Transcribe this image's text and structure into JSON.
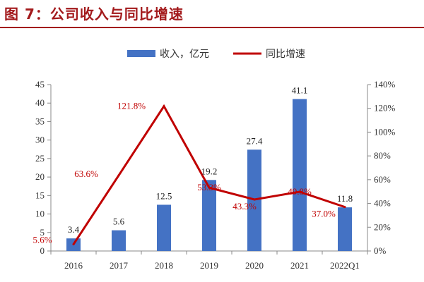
{
  "header": {
    "title": "图 7：公司收入与同比增速"
  },
  "chart_data": {
    "type": "bar",
    "categories": [
      "2016",
      "2017",
      "2018",
      "2019",
      "2020",
      "2021",
      "2022Q1"
    ],
    "series": [
      {
        "name": "收入，亿元",
        "type": "bar",
        "axis": "left",
        "color": "#4472c4",
        "values": [
          3.4,
          5.6,
          12.5,
          19.2,
          27.4,
          41.1,
          11.8
        ],
        "labels": [
          "3.4",
          "5.6",
          "12.5",
          "19.2",
          "27.4",
          "41.1",
          "11.8"
        ]
      },
      {
        "name": "同比增速",
        "type": "line",
        "axis": "right",
        "color": "#c00000",
        "values": [
          5.6,
          63.6,
          121.8,
          53.3,
          43.3,
          49.8,
          37.0
        ],
        "labels": [
          "5.6%",
          "63.6%",
          "121.8%",
          "53.3%",
          "43.3%",
          "49.8%",
          "37.0%"
        ]
      }
    ],
    "y_left": {
      "min": 0,
      "max": 45,
      "step": 5,
      "ticks": [
        "0",
        "5",
        "10",
        "15",
        "20",
        "25",
        "30",
        "35",
        "40",
        "45"
      ]
    },
    "y_right": {
      "min": 0,
      "max": 140,
      "step": 20,
      "ticks": [
        "0%",
        "20%",
        "40%",
        "60%",
        "80%",
        "100%",
        "120%",
        "140%"
      ]
    },
    "legend_position": "top-center",
    "grid": false
  }
}
